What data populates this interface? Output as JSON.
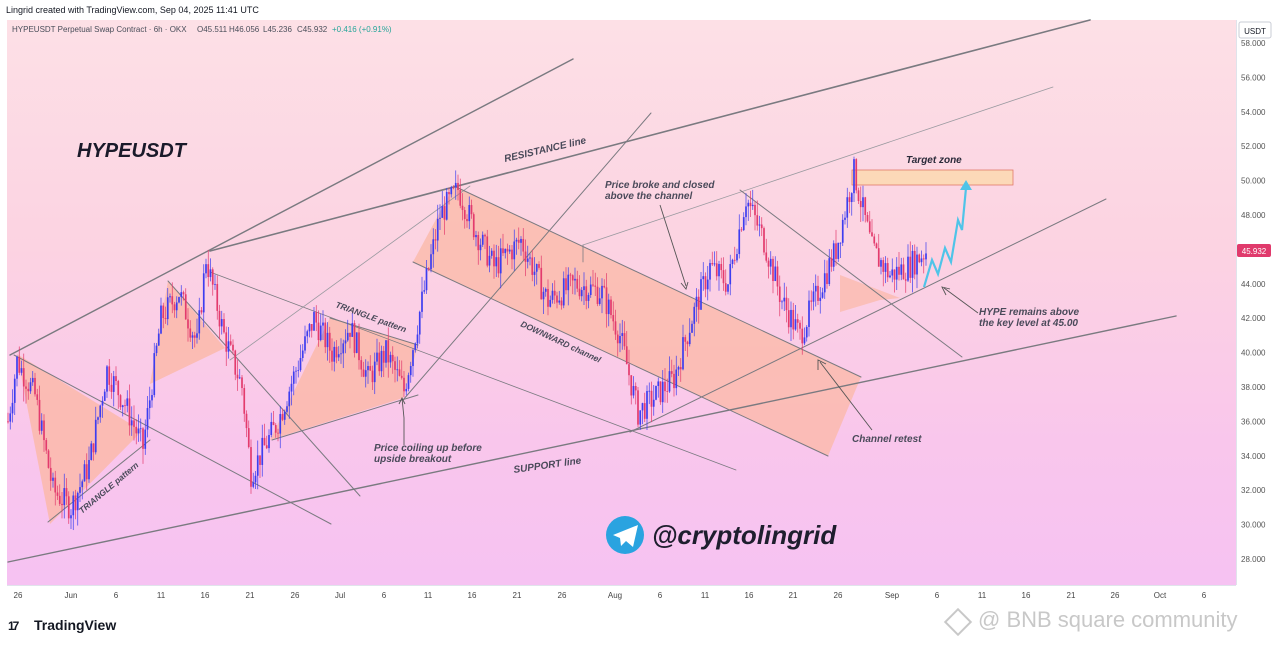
{
  "header": {
    "credit": "Lingrid created with TradingView.com, Sep 04, 2025 11:41 UTC",
    "symbol_line": "HYPEUSDT Perpetual Swap Contract · 6h · OKX",
    "open": "O45.511",
    "high": "H46.056",
    "low": "L45.236",
    "close": "C45.932",
    "change": "+0.416 (+0.91%)",
    "currency": "USDT",
    "current_price": "45.932"
  },
  "branding": {
    "logo_mark": "17",
    "logo_text": "TradingView",
    "telegram_handle": "@cryptolingrid",
    "watermark": "@ BNB square community"
  },
  "colors": {
    "pattern_fill": "#fbb8a6",
    "target_fill": "#fcd9b8",
    "bull_candle": "#3d3df0",
    "bear_candle": "#e33b6d",
    "projection": "#4fc4e8",
    "price_badge": "#e03a6c",
    "telegram": "#2aa3e0"
  },
  "chart_data": {
    "type": "candlestick",
    "title": "HYPEUSDT",
    "interval": "6h",
    "exchange": "OKX",
    "ylim": [
      26.5,
      59.5
    ],
    "y_ticks": [
      "58.000",
      "56.000",
      "54.000",
      "52.000",
      "50.000",
      "48.000",
      "46.000",
      "44.000",
      "42.000",
      "40.000",
      "38.000",
      "36.000",
      "34.000",
      "32.000",
      "30.000",
      "28.000"
    ],
    "x_ticks": [
      "26",
      "Jun",
      "6",
      "11",
      "16",
      "21",
      "26",
      "Jul",
      "6",
      "11",
      "16",
      "21",
      "26",
      "Aug",
      "6",
      "11",
      "16",
      "21",
      "26",
      "Sep",
      "6",
      "11",
      "16",
      "21",
      "26",
      "Oct",
      "6"
    ],
    "price_path": [
      [
        "May 25",
        36.0
      ],
      [
        "May 26",
        39.5
      ],
      [
        "May 28",
        37.5
      ],
      [
        "May 30",
        32.0
      ],
      [
        "Jun 1",
        31.0
      ],
      [
        "Jun 3",
        33.5
      ],
      [
        "Jun 5",
        39.0
      ],
      [
        "Jun 7",
        37.0
      ],
      [
        "Jun 9",
        34.5
      ],
      [
        "Jun 11",
        42.0
      ],
      [
        "Jun 13",
        43.5
      ],
      [
        "Jun 15",
        40.5
      ],
      [
        "Jun 16",
        45.5
      ],
      [
        "Jun 18",
        41.0
      ],
      [
        "Jun 20",
        38.0
      ],
      [
        "Jun 21",
        33.0
      ],
      [
        "Jun 22",
        34.0
      ],
      [
        "Jun 24",
        36.0
      ],
      [
        "Jun 26",
        39.0
      ],
      [
        "Jun 28",
        42.0
      ],
      [
        "Jun 30",
        40.0
      ],
      [
        "Jul 2",
        41.5
      ],
      [
        "Jul 4",
        38.5
      ],
      [
        "Jul 6",
        40.0
      ],
      [
        "Jul 8",
        37.8
      ],
      [
        "Jul 10",
        43.0
      ],
      [
        "Jul 12",
        48.0
      ],
      [
        "Jul 14",
        49.5
      ],
      [
        "Jul 16",
        47.0
      ],
      [
        "Jul 18",
        45.0
      ],
      [
        "Jul 21",
        46.5
      ],
      [
        "Jul 24",
        43.0
      ],
      [
        "Jul 27",
        44.0
      ],
      [
        "Jul 30",
        43.5
      ],
      [
        "Aug 1",
        41.0
      ],
      [
        "Aug 3",
        36.5
      ],
      [
        "Aug 5",
        37.5
      ],
      [
        "Aug 7",
        38.5
      ],
      [
        "Aug 9",
        42.0
      ],
      [
        "Aug 11",
        45.0
      ],
      [
        "Aug 13",
        44.0
      ],
      [
        "Aug 15",
        49.0
      ],
      [
        "Aug 17",
        46.5
      ],
      [
        "Aug 19",
        43.0
      ],
      [
        "Aug 21",
        41.0
      ],
      [
        "Aug 23",
        43.5
      ],
      [
        "Aug 25",
        46.0
      ],
      [
        "Aug 27",
        50.5
      ],
      [
        "Aug 29",
        46.0
      ],
      [
        "Aug 31",
        44.5
      ],
      [
        "Sep 2",
        45.0
      ],
      [
        "Sep 4",
        45.9
      ]
    ],
    "target_zone": [
      49.8,
      50.7
    ],
    "key_level": 45.0
  },
  "annotations": {
    "resistance": "RESISTANCE line",
    "support": "SUPPORT line",
    "downward_channel": "DOWNWARD channel",
    "triangle_1": "TRIANGLE pattern",
    "triangle_2": "TRIANGLE pattern",
    "coiling_1": "Price coiling up before",
    "coiling_2": "upside breakout",
    "broke_1": "Price broke and closed",
    "broke_2": "above the channel",
    "target": "Target zone",
    "hype_1": "HYPE remains above",
    "hype_2": "the key level at 45.00",
    "retest": "Channel retest"
  }
}
